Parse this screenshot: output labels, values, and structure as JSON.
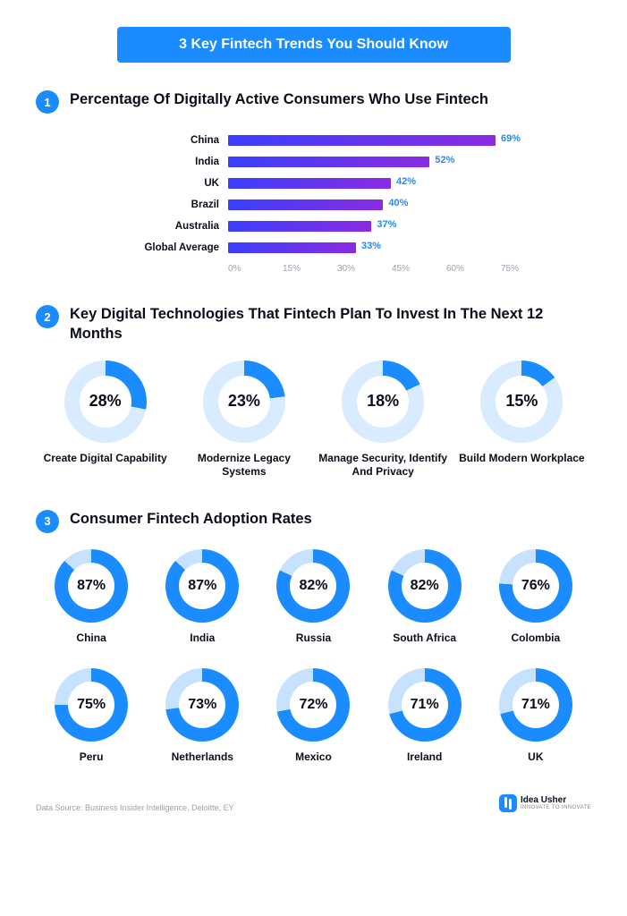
{
  "banner_title": "3 Key Fintech Trends You Should Know",
  "colors": {
    "accent": "#1b8cff",
    "donut_track_dark": "#d8ebff",
    "donut_track_light": "#c7e2ff",
    "text": "#0a0e1a",
    "muted": "#9aa3ae"
  },
  "section1": {
    "num": "1",
    "title": "Percentage Of Digitally Active Consumers Who Use Fintech",
    "chart": {
      "type": "bar",
      "x_max": 75,
      "x_ticks": [
        "0%",
        "15%",
        "30%",
        "45%",
        "60%",
        "75%"
      ],
      "bar_gradient_from": "#3a3fff",
      "bar_gradient_to": "#8a2be2",
      "value_color": "#1b8cff",
      "items": [
        {
          "label": "China",
          "value": 69,
          "display": "69%"
        },
        {
          "label": "India",
          "value": 52,
          "display": "52%"
        },
        {
          "label": "UK",
          "value": 42,
          "display": "42%"
        },
        {
          "label": "Brazil",
          "value": 40,
          "display": "40%"
        },
        {
          "label": "Australia",
          "value": 37,
          "display": "37%"
        },
        {
          "label": "Global Average",
          "value": 33,
          "display": "33%"
        }
      ]
    }
  },
  "section2": {
    "num": "2",
    "title": "Key Digital Technologies That Fintech Plan To Invest In The Next 12 Months",
    "donuts": {
      "fill_color": "#1b8cff",
      "track_color": "#d8ebff",
      "items": [
        {
          "value": 28,
          "display": "28%",
          "label": "Create Digital Capability"
        },
        {
          "value": 23,
          "display": "23%",
          "label": "Modernize Legacy Systems"
        },
        {
          "value": 18,
          "display": "18%",
          "label": "Manage Security, Identify And Privacy"
        },
        {
          "value": 15,
          "display": "15%",
          "label": "Build Modern Workplace"
        }
      ]
    }
  },
  "section3": {
    "num": "3",
    "title": "Consumer Fintech Adoption Rates",
    "donuts": {
      "fill_color": "#1b8cff",
      "track_color": "#c7e2ff",
      "items": [
        {
          "value": 87,
          "display": "87%",
          "label": "China"
        },
        {
          "value": 87,
          "display": "87%",
          "label": "India"
        },
        {
          "value": 82,
          "display": "82%",
          "label": "Russia"
        },
        {
          "value": 82,
          "display": "82%",
          "label": "South Africa"
        },
        {
          "value": 76,
          "display": "76%",
          "label": "Colombia"
        },
        {
          "value": 75,
          "display": "75%",
          "label": "Peru"
        },
        {
          "value": 73,
          "display": "73%",
          "label": "Netherlands"
        },
        {
          "value": 72,
          "display": "72%",
          "label": "Mexico"
        },
        {
          "value": 71,
          "display": "71%",
          "label": "Ireland"
        },
        {
          "value": 71,
          "display": "71%",
          "label": "UK"
        }
      ]
    }
  },
  "footer": {
    "source": "Data Source: Business Insider Intelligence, Deloitte, EY",
    "brand_name": "Idea Usher",
    "brand_tag": "INNOVATE TO INNOVATE"
  }
}
